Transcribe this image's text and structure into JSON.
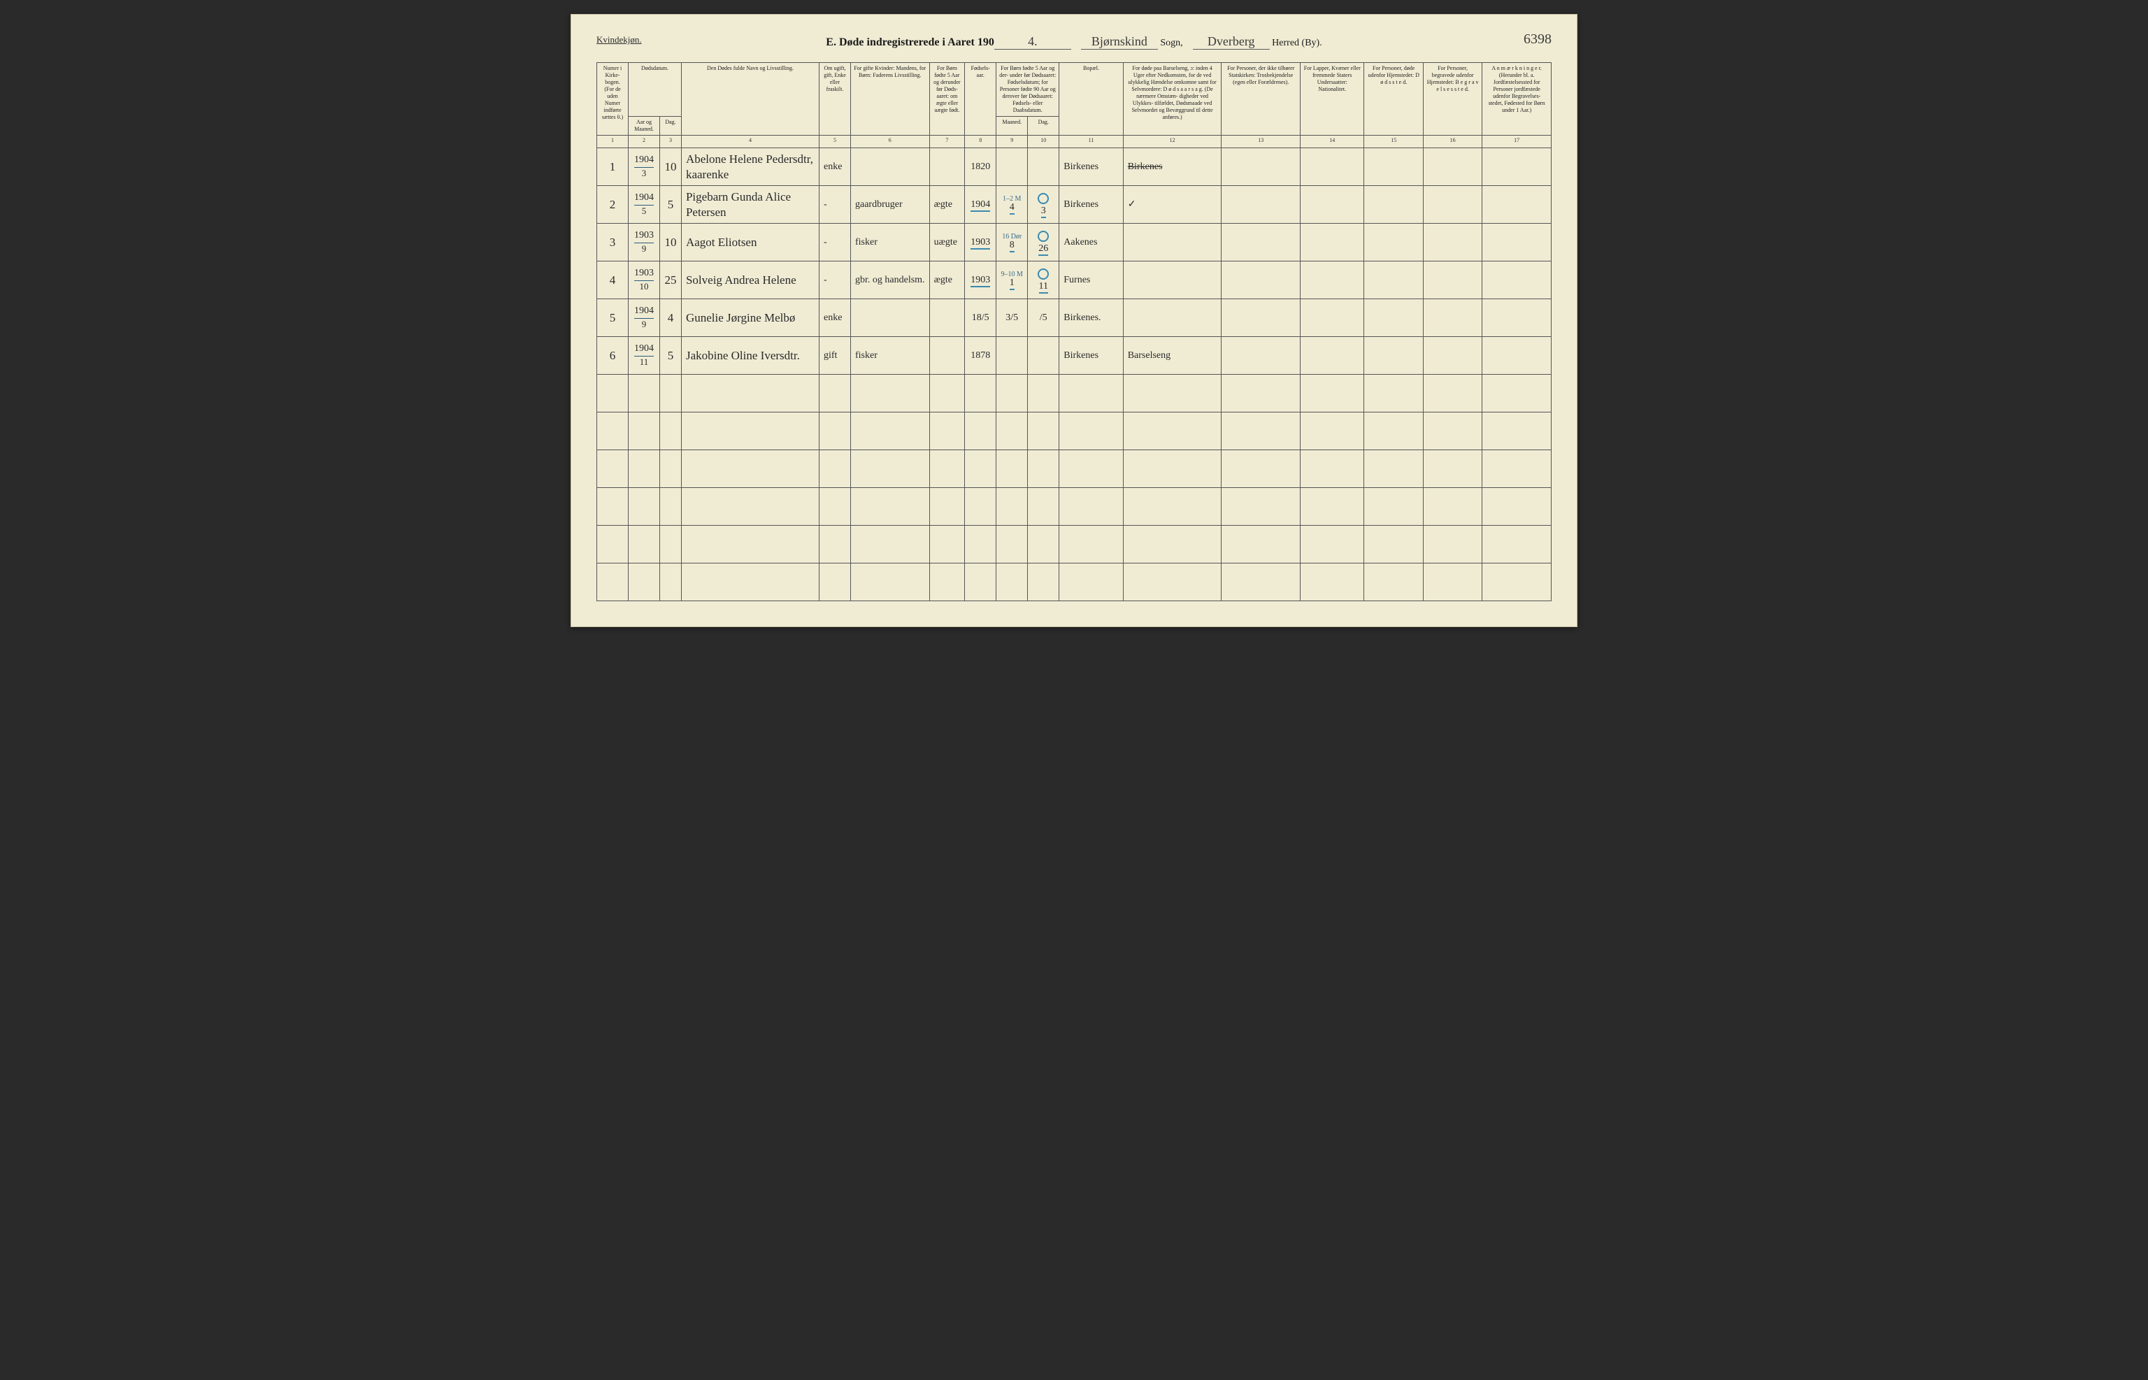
{
  "header": {
    "gender_label": "Kvindekjøn.",
    "title_prefix": "E.  Døde indregistrerede i Aaret 190",
    "year_suffix": "4.",
    "sogn_value": "Bjørnskind",
    "sogn_label": "Sogn,",
    "herred_value": "Dverberg",
    "herred_label": "Herred (By).",
    "page_number": "6398"
  },
  "columns": {
    "c1": "Numer i Kirke- bogen. (For de uden Numer indførte sættes 0.)",
    "c2_group": "Dødsdatum.",
    "c2": "Aar og Maaned.",
    "c3": "Dag.",
    "c4": "Den Dødes fulde Navn og Livsstilling.",
    "c5": "Om ugift, gift, Enke eller fraskilt.",
    "c6": "For gifte Kvinder: Mandens, for Børn: Faderens Livsstilling.",
    "c7": "For Børn fødte 5 Aar og derunder før Døds- aaret: om ægte eller uægte født.",
    "c8": "Fødsels- aar.",
    "c9_10": "For Børn fødte 5 Aar og der- under før Dødsaaret: Fødselsdatum; for Personer fødte 90 Aar og derover før Dødsaaret: Fødsels- eller Daabsdatum.",
    "c9": "Maaned.",
    "c10": "Dag.",
    "c11": "Bopæl.",
    "c12": "For døde paa Barselseng, ɔ: inden 4 Uger efter Nedkomsten, for de ved ulykkelig Hændelse omkomne samt for Selvmordere: D ø d s a a r s a g. (De nærmere Omstæn- digheder ved Ulykkes- tilfældet, Dødsmaade ved Selvmordet og Bevæggrund til dette anføres.)",
    "c13": "For Personer, der ikke tilhører Statskirken: Trosbekjendelse (egen eller Forældrenes).",
    "c14": "For Lapper, Kvæner eller fremmede Staters Undersaatter: Nationalitet.",
    "c15": "For Personer, døde udenfor Hjemstedet: D ø d s s t e d.",
    "c16": "For Personer, begravede udenfor Hjemstedet: B e g r a v e l s e s s t e d.",
    "c17": "A n m æ r k n i n g e r. (Herunder bl. a. Jordfæstelsessted for Personer jordfæstede udenfor Begravelses- stedet, Fødested for Børn under 1 Aar.)"
  },
  "colnums": [
    "1",
    "2",
    "3",
    "4",
    "5",
    "6",
    "7",
    "8",
    "9",
    "10",
    "11",
    "12",
    "13",
    "14",
    "15",
    "16",
    "17"
  ],
  "rows": [
    {
      "num": "1",
      "year": "1904",
      "month": "3",
      "day": "10",
      "name": "Abelone Helene Pedersdtr, kaarenke",
      "marital": "enke",
      "father_occ": "",
      "legit": "",
      "birth_year": "1820",
      "bm": "",
      "bd": "",
      "bopel": "Birkenes",
      "cause": "Birkenes",
      "cause_struck": true,
      "note_above": "",
      "circle": false,
      "c13": "",
      "c14": "",
      "c15": "",
      "c16": "",
      "c17": ""
    },
    {
      "num": "2",
      "year": "1904",
      "month": "5",
      "day": "5",
      "name": "Pigebarn Gunda Alice Petersen",
      "marital": "-",
      "father_occ": "gaardbruger",
      "legit": "ægte",
      "birth_year": "1904",
      "bm": "4",
      "bd": "3",
      "bopel": "Birkenes",
      "cause": "✓",
      "cause_struck": false,
      "note_above": "1–2 M",
      "circle": true,
      "c13": "",
      "c14": "",
      "c15": "",
      "c16": "",
      "c17": ""
    },
    {
      "num": "3",
      "year": "1903",
      "month": "9",
      "day": "10",
      "name": "Aagot Eliotsen",
      "marital": "-",
      "father_occ": "fisker",
      "legit": "uægte",
      "birth_year": "1903",
      "bm": "8",
      "bd": "26",
      "bopel": "Aakenes",
      "cause": "",
      "cause_struck": false,
      "note_above": "16 Dør",
      "circle": true,
      "c13": "",
      "c14": "",
      "c15": "",
      "c16": "",
      "c17": ""
    },
    {
      "num": "4",
      "year": "1903",
      "month": "10",
      "day": "25",
      "name": "Solveig Andrea Helene",
      "marital": "-",
      "father_occ": "gbr. og handelsm.",
      "legit": "ægte",
      "birth_year": "1903",
      "bm": "1",
      "bd": "11",
      "bopel": "Furnes",
      "cause": "",
      "cause_struck": false,
      "note_above": "9–10 M",
      "circle": true,
      "c13": "",
      "c14": "",
      "c15": "",
      "c16": "",
      "c17": ""
    },
    {
      "num": "5",
      "year": "1904",
      "month": "9",
      "day": "4",
      "name": "Gunelie Jørgine Melbø",
      "marital": "enke",
      "father_occ": "",
      "legit": "",
      "birth_year": "18/5",
      "bm": "3/5",
      "bd": "/5",
      "bopel": "Birkenes.",
      "cause": "",
      "cause_struck": false,
      "note_above": "",
      "circle": false,
      "c13": "",
      "c14": "",
      "c15": "",
      "c16": "",
      "c17": ""
    },
    {
      "num": "6",
      "year": "1904",
      "month": "11",
      "day": "5",
      "name": "Jakobine Oline Iversdtr.",
      "marital": "gift",
      "father_occ": "fisker",
      "legit": "",
      "birth_year": "1878",
      "bm": "",
      "bd": "",
      "bopel": "Birkenes",
      "cause": "Barselseng",
      "cause_struck": false,
      "note_above": "",
      "circle": false,
      "c13": "",
      "c14": "",
      "c15": "",
      "c16": "",
      "c17": ""
    }
  ],
  "empty_row_count": 6,
  "colors": {
    "paper": "#f0ecd4",
    "ink": "#2a2a2a",
    "blue_pencil": "#3a8ab0",
    "rule": "#555555"
  }
}
